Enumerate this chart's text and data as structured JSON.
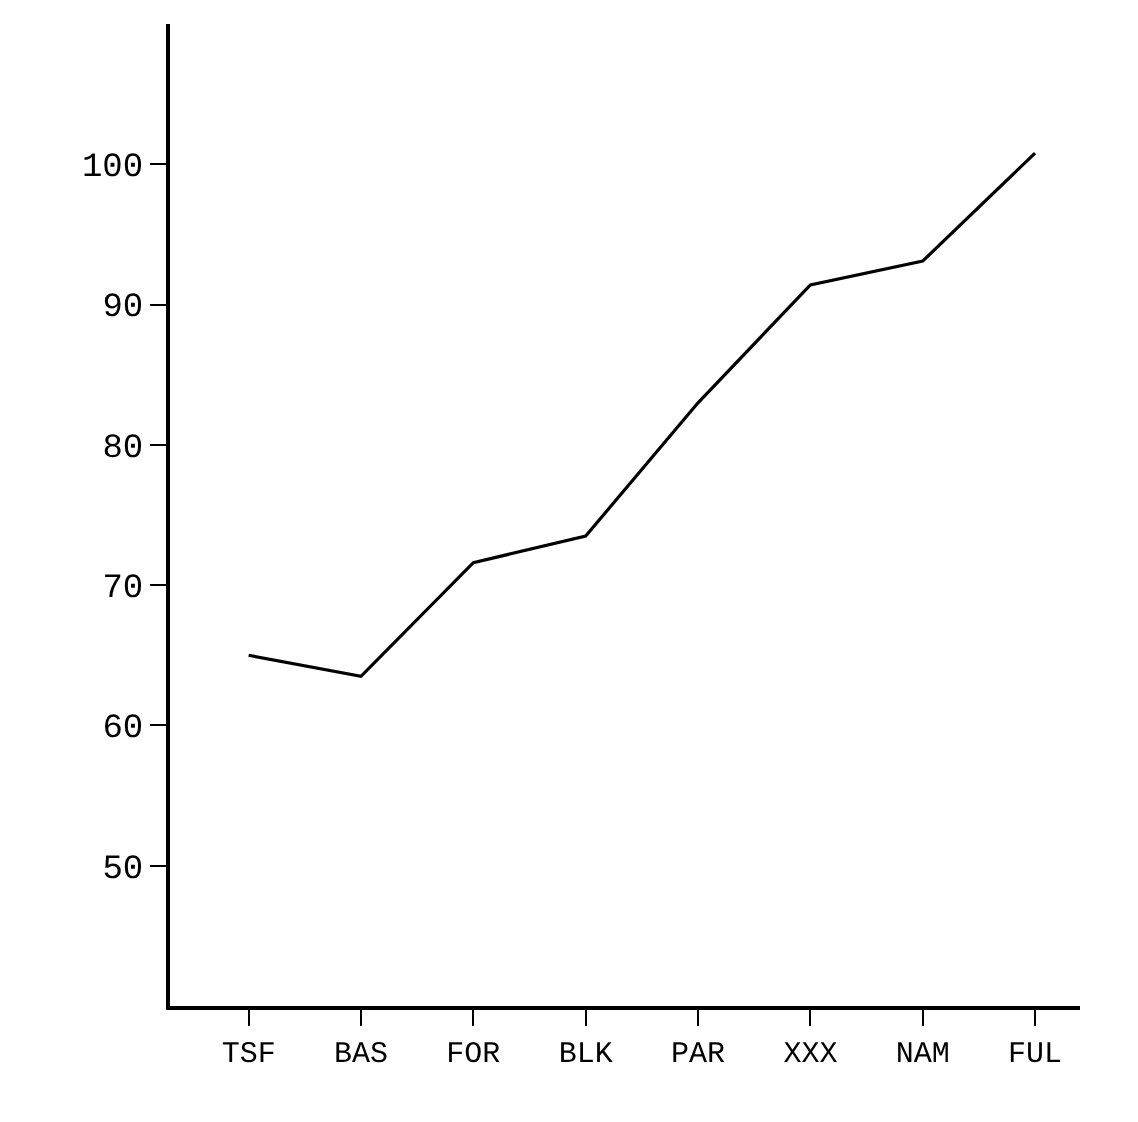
{
  "chart_data": {
    "type": "line",
    "categories": [
      "TSF",
      "BAS",
      "FOR",
      "BLK",
      "PAR",
      "XXX",
      "NAM",
      "FUL"
    ],
    "series": [
      {
        "color": "#000000",
        "values": [
          65,
          63.5,
          71.6,
          73.5,
          83,
          91.4,
          93.1,
          100.8
        ]
      }
    ],
    "ylim": [
      40,
      110
    ],
    "yticks": [
      50,
      60,
      70,
      80,
      90,
      100
    ],
    "legend": false,
    "marker": "none",
    "line_style": "solid"
  }
}
